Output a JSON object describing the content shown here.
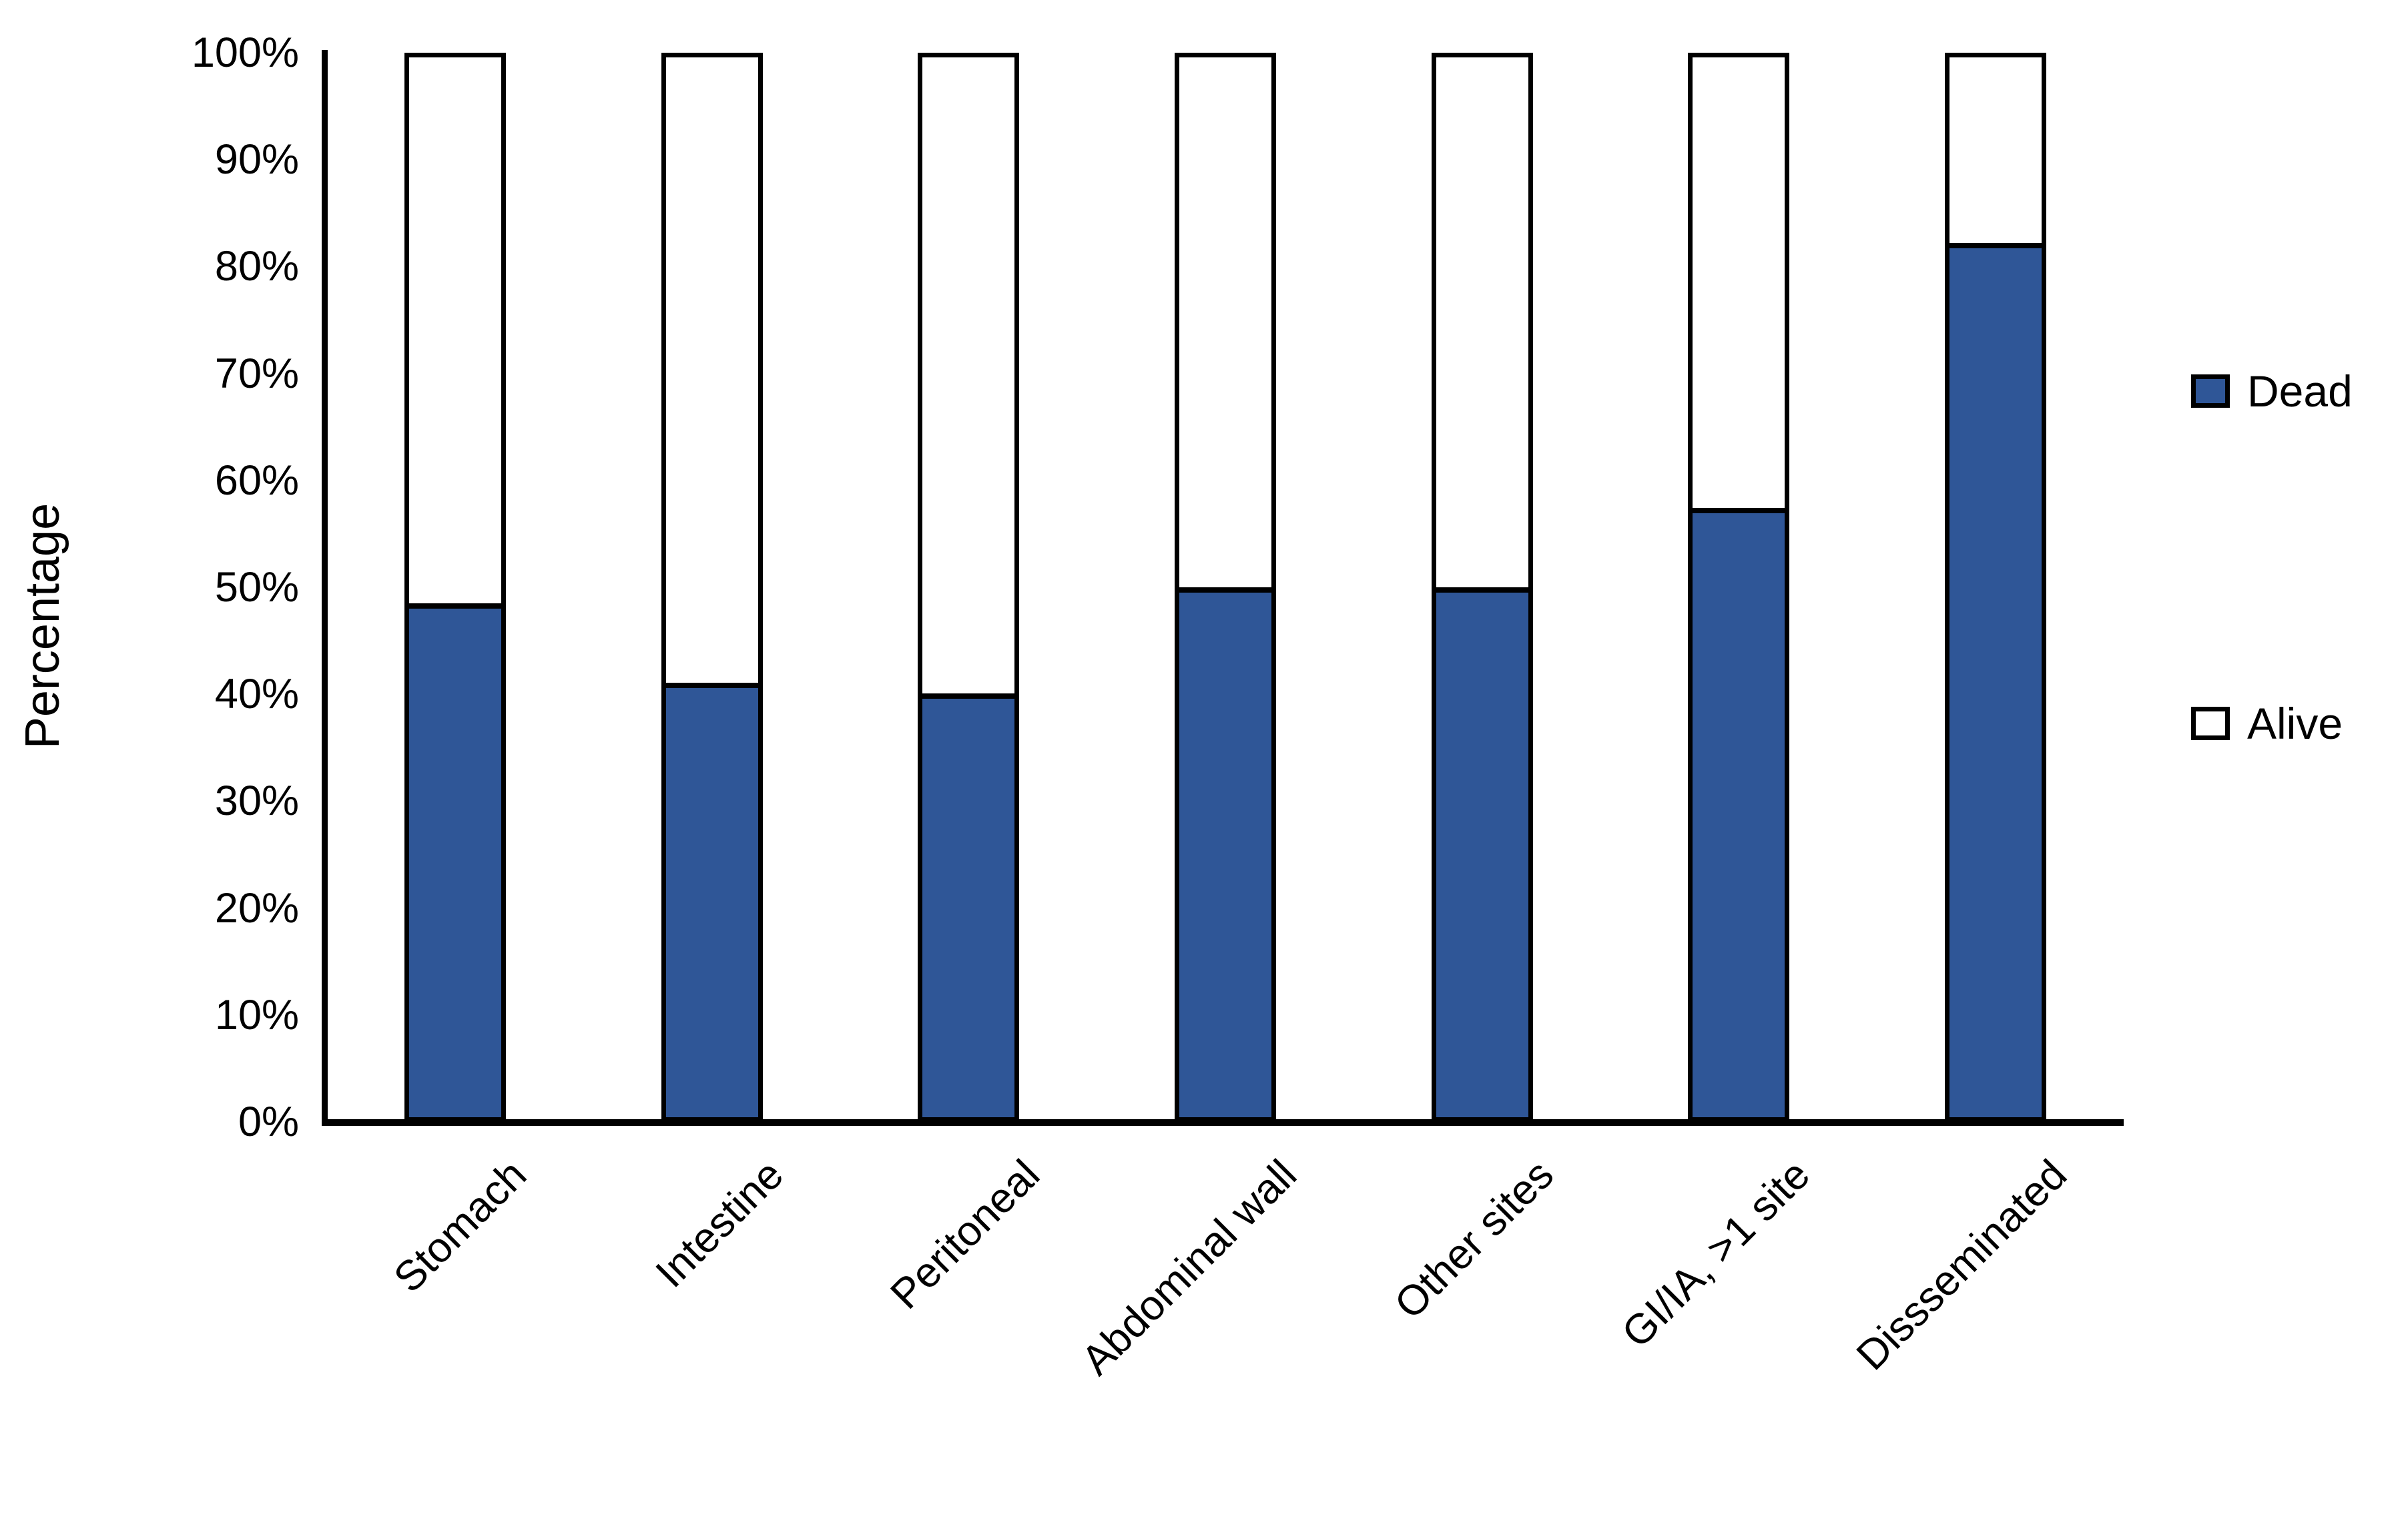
{
  "chart_data": {
    "type": "bar",
    "stacked": true,
    "percent_stacked": true,
    "title": "",
    "xlabel": "",
    "ylabel": "Percentage",
    "categories": [
      "Stomach",
      "Intestine",
      "Peritoneal",
      "Abdominal wall",
      "Other sites",
      "GI/IA, >1 site",
      "Dissseminated"
    ],
    "series": [
      {
        "name": "Dead",
        "color": "#2F5697",
        "values": [
          48.5,
          41,
          40,
          50,
          50,
          57.5,
          82.5
        ]
      },
      {
        "name": "Alive",
        "color": "#FFFFFF",
        "values": [
          51.5,
          59,
          60,
          50,
          50,
          42.5,
          17.5
        ]
      }
    ],
    "ylim": [
      0,
      100
    ],
    "ytick_values": [
      0,
      10,
      20,
      30,
      40,
      50,
      60,
      70,
      80,
      90,
      100
    ],
    "yticks": [
      "0%",
      "10%",
      "20%",
      "30%",
      "40%",
      "50%",
      "60%",
      "70%",
      "80%",
      "90%",
      "100%"
    ],
    "grid": false,
    "legend_position": "right",
    "bar_border_color": "#000000",
    "axis_color": "#000000"
  },
  "legend": {
    "dead_label": "Dead",
    "alive_label": "Alive"
  },
  "colors": {
    "dead": "#2F5697",
    "alive": "#FFFFFF",
    "axis": "#000000",
    "background": "#FFFFFF",
    "text": "#000000"
  }
}
